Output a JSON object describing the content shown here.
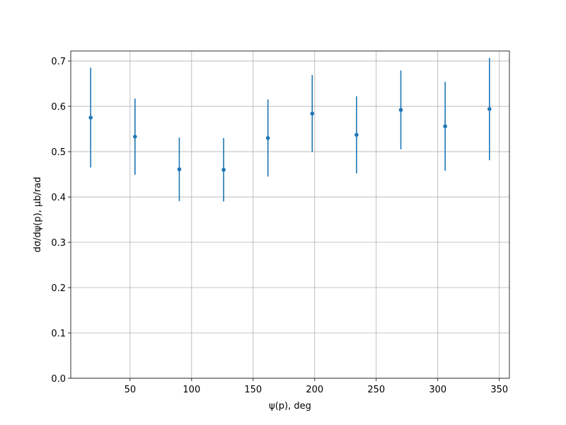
{
  "chart_data": {
    "type": "errorbar",
    "x_label": "ψ(p), deg",
    "y_label": "dσ/dψ(p), μb/rad",
    "x": [
      18,
      54,
      90,
      126,
      162,
      198,
      234,
      270,
      306,
      342
    ],
    "values": [
      0.575,
      0.533,
      0.461,
      0.46,
      0.53,
      0.584,
      0.537,
      0.592,
      0.556,
      0.594
    ],
    "errors": [
      0.11,
      0.084,
      0.07,
      0.07,
      0.085,
      0.085,
      0.085,
      0.087,
      0.098,
      0.113
    ],
    "color": "#1f77b4",
    "xlim": [
      1.8,
      358.2
    ],
    "ylim": [
      0,
      0.722
    ],
    "xticks": [
      50,
      100,
      150,
      200,
      250,
      300,
      350
    ],
    "yticks": [
      {
        "value": 0,
        "label": "0.0"
      },
      0.1,
      0.2,
      0.3,
      0.4,
      0.5,
      0.6,
      0.7
    ],
    "grid": true
  }
}
